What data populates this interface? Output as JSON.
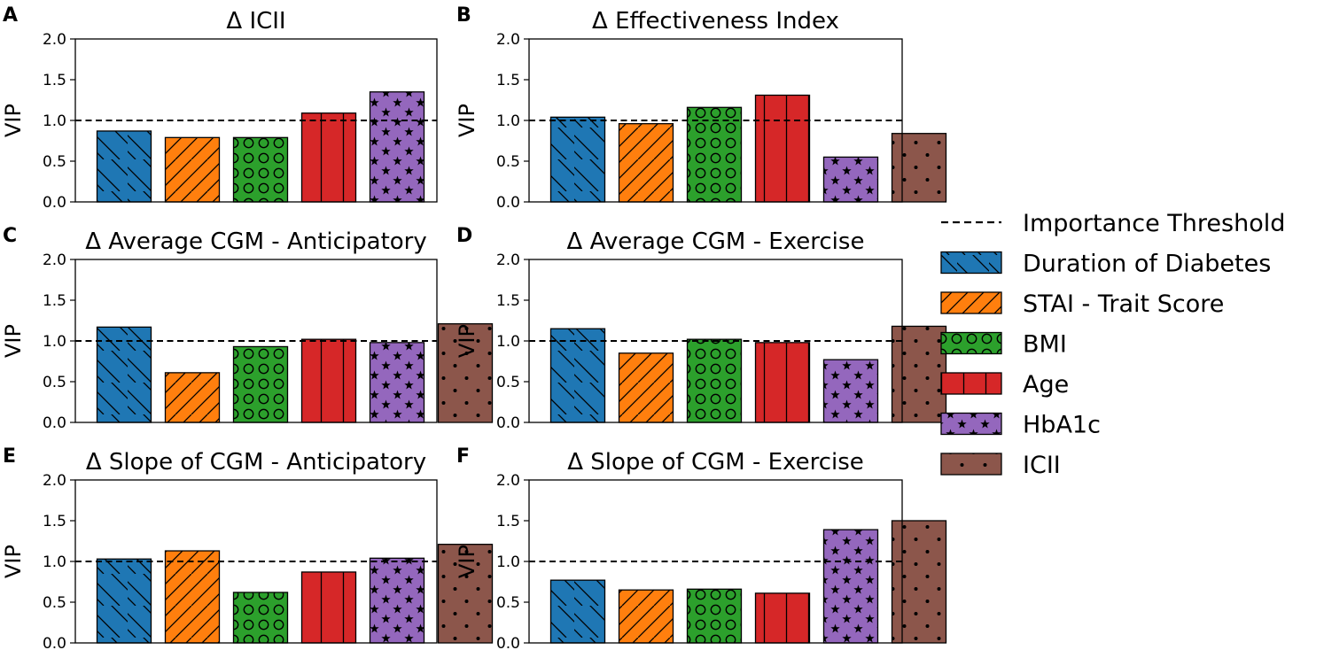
{
  "chart_data": [
    {
      "panel_label": "A",
      "type": "bar",
      "title": "Δ ICII",
      "xlabel": "",
      "ylabel": "VIP",
      "ylim": [
        0,
        2.0
      ],
      "yticks": [
        "0.0",
        "0.5",
        "1.0",
        "1.5",
        "2.0"
      ],
      "threshold": 1.0,
      "categories": [
        "Duration of Diabetes",
        "STAI - Trait Score",
        "BMI",
        "Age",
        "HbA1c"
      ],
      "values": [
        0.87,
        0.79,
        0.79,
        1.09,
        1.35
      ]
    },
    {
      "panel_label": "B",
      "type": "bar",
      "title": "Δ Effectiveness Index",
      "xlabel": "",
      "ylabel": "VIP",
      "ylim": [
        0,
        2.0
      ],
      "yticks": [
        "0.0",
        "0.5",
        "1.0",
        "1.5",
        "2.0"
      ],
      "threshold": 1.0,
      "categories": [
        "Duration of Diabetes",
        "STAI - Trait Score",
        "BMI",
        "Age",
        "HbA1c",
        "ICII"
      ],
      "values": [
        1.04,
        0.96,
        1.16,
        1.31,
        0.55,
        0.84
      ]
    },
    {
      "panel_label": "C",
      "type": "bar",
      "title": "Δ Average CGM - Anticipatory",
      "xlabel": "",
      "ylabel": "VIP",
      "ylim": [
        0,
        2.0
      ],
      "yticks": [
        "0.0",
        "0.5",
        "1.0",
        "1.5",
        "2.0"
      ],
      "threshold": 1.0,
      "categories": [
        "Duration of Diabetes",
        "STAI - Trait Score",
        "BMI",
        "Age",
        "HbA1c",
        "ICII"
      ],
      "values": [
        1.17,
        0.61,
        0.93,
        1.02,
        0.98,
        1.21
      ]
    },
    {
      "panel_label": "D",
      "type": "bar",
      "title": "Δ Average CGM - Exercise",
      "xlabel": "",
      "ylabel": "VIP",
      "ylim": [
        0,
        2.0
      ],
      "yticks": [
        "0.0",
        "0.5",
        "1.0",
        "1.5",
        "2.0"
      ],
      "threshold": 1.0,
      "categories": [
        "Duration of Diabetes",
        "STAI - Trait Score",
        "BMI",
        "Age",
        "HbA1c",
        "ICII"
      ],
      "values": [
        1.15,
        0.85,
        1.02,
        0.98,
        0.77,
        1.18
      ]
    },
    {
      "panel_label": "E",
      "type": "bar",
      "title": "Δ Slope of CGM - Anticipatory",
      "xlabel": "",
      "ylabel": "VIP",
      "ylim": [
        0,
        2.0
      ],
      "yticks": [
        "0.0",
        "0.5",
        "1.0",
        "1.5",
        "2.0"
      ],
      "threshold": 1.0,
      "categories": [
        "Duration of Diabetes",
        "STAI - Trait Score",
        "BMI",
        "Age",
        "HbA1c",
        "ICII"
      ],
      "values": [
        1.03,
        1.13,
        0.62,
        0.87,
        1.04,
        1.21
      ]
    },
    {
      "panel_label": "F",
      "type": "bar",
      "title": "Δ Slope of CGM - Exercise",
      "xlabel": "",
      "ylabel": "VIP",
      "ylim": [
        0,
        2.0
      ],
      "yticks": [
        "0.0",
        "0.5",
        "1.0",
        "1.5",
        "2.0"
      ],
      "threshold": 1.0,
      "categories": [
        "Duration of Diabetes",
        "STAI - Trait Score",
        "BMI",
        "Age",
        "HbA1c",
        "ICII"
      ],
      "values": [
        0.77,
        0.65,
        0.66,
        0.61,
        1.39,
        1.5
      ]
    }
  ],
  "legend": {
    "placement": "right",
    "threshold_label": "Importance Threshold",
    "items": [
      {
        "label": "Duration of Diabetes",
        "color": "#1f77b4",
        "pattern": "backslash-hatch"
      },
      {
        "label": "STAI - Trait Score",
        "color": "#ff7f0e",
        "pattern": "slash-hatch"
      },
      {
        "label": "BMI",
        "color": "#2ca02c",
        "pattern": "circles"
      },
      {
        "label": "Age",
        "color": "#d62728",
        "pattern": "vertical-lines"
      },
      {
        "label": "HbA1c",
        "color": "#9467bd",
        "pattern": "stars"
      },
      {
        "label": "ICII",
        "color": "#8c564b",
        "pattern": "dots"
      }
    ]
  }
}
